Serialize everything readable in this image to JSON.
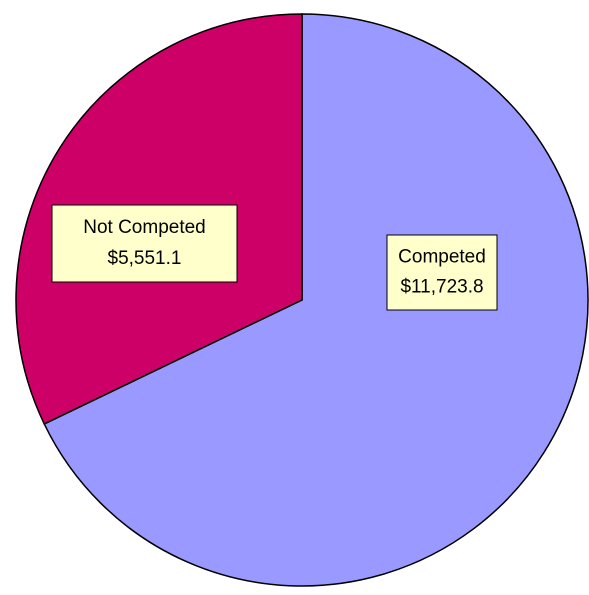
{
  "chart_data": {
    "type": "pie",
    "categories": [
      "Competed",
      "Not Competed"
    ],
    "values": [
      11723.8,
      5551.1
    ],
    "value_labels": [
      "$11,723.8",
      "$5,551.1"
    ],
    "colors": [
      "#9999ff",
      "#cc0066"
    ]
  }
}
